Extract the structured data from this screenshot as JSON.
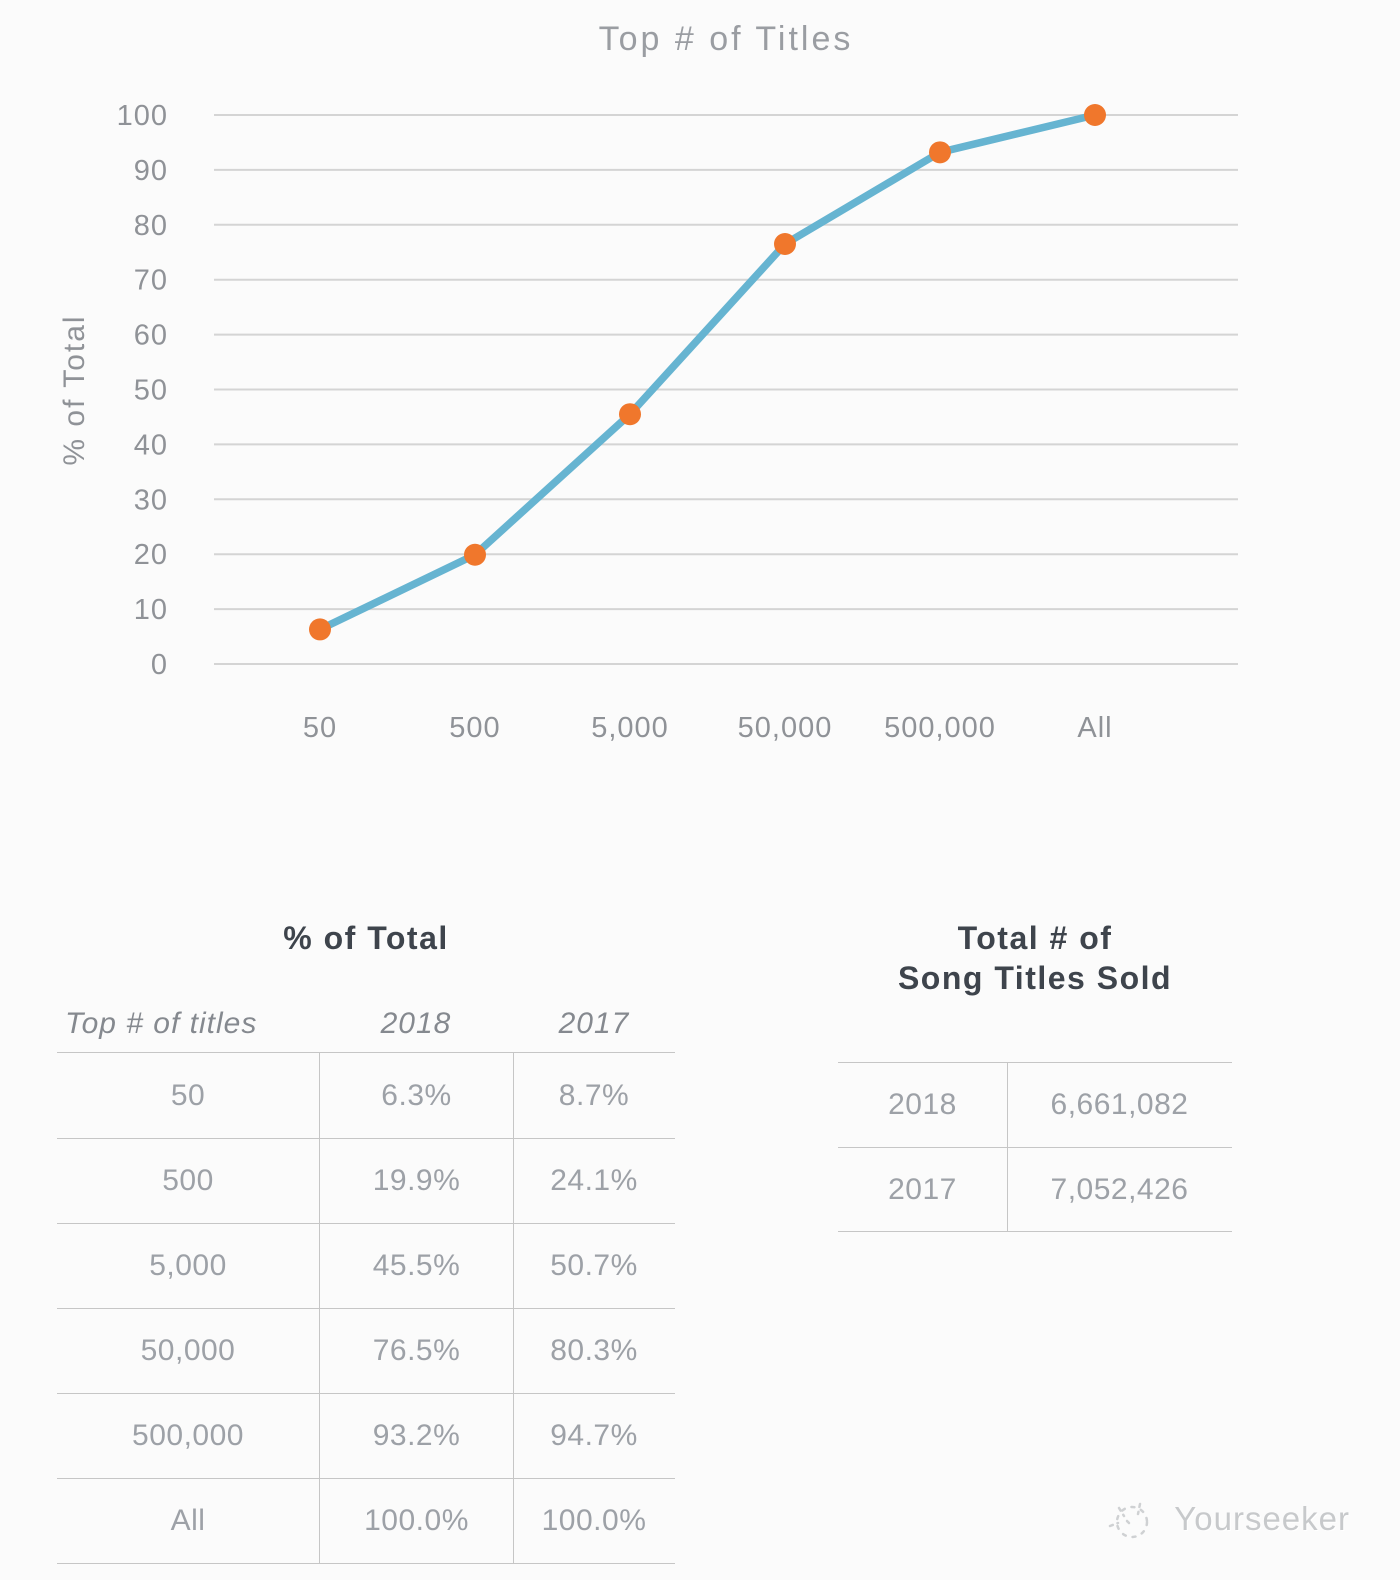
{
  "chart": {
    "title": "Top # of Titles",
    "ylabel": "% of Total",
    "colors": {
      "line": "#66b4d1",
      "marker": "#f0772c",
      "grid": "#d4d4d4",
      "tick_text": "#8f9297",
      "title_text": "#9a9da2"
    }
  },
  "chart_data": {
    "type": "line",
    "title": "Top # of Titles",
    "xlabel": "",
    "ylabel": "% of Total",
    "categories": [
      "50",
      "500",
      "5,000",
      "50,000",
      "500,000",
      "All"
    ],
    "series": [
      {
        "name": "2018",
        "values": [
          6.3,
          19.9,
          45.5,
          76.5,
          93.2,
          100.0
        ]
      }
    ],
    "ylim": [
      0,
      100
    ],
    "ytick_step": 10,
    "grid": true,
    "legend": false
  },
  "left_table": {
    "title": "% of Total",
    "columns": [
      "Top # of titles",
      "2018",
      "2017"
    ],
    "rows": [
      [
        "50",
        "6.3%",
        "8.7%"
      ],
      [
        "500",
        "19.9%",
        "24.1%"
      ],
      [
        "5,000",
        "45.5%",
        "50.7%"
      ],
      [
        "50,000",
        "76.5%",
        "80.3%"
      ],
      [
        "500,000",
        "93.2%",
        "94.7%"
      ],
      [
        "All",
        "100.0%",
        "100.0%"
      ]
    ]
  },
  "right_table": {
    "title_line1": "Total # of",
    "title_line2": "Song Titles Sold",
    "rows": [
      [
        "2018",
        "6,661,082"
      ],
      [
        "2017",
        "7,052,426"
      ]
    ]
  },
  "watermark": {
    "text": "Yourseeker"
  }
}
